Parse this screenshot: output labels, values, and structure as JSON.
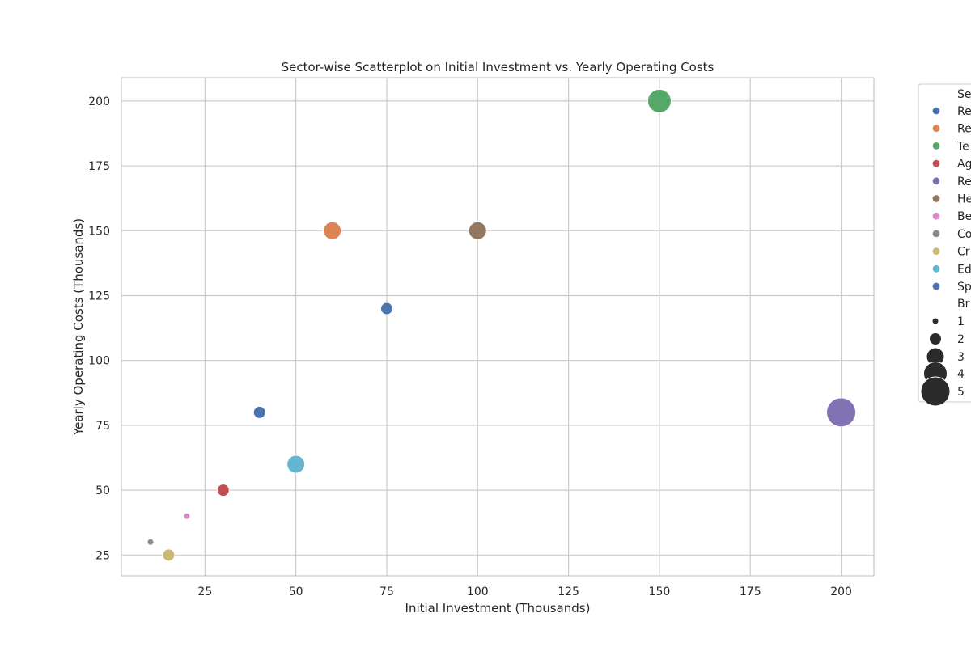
{
  "chart_data": {
    "type": "scatter",
    "title": "Sector-wise Scatterplot on Initial Investment vs. Yearly Operating Costs",
    "xlabel": "Initial Investment (Thousands)",
    "ylabel": "Yearly Operating Costs (Thousands)",
    "xlim": [
      2,
      209
    ],
    "ylim": [
      17,
      209
    ],
    "xticks": [
      25,
      50,
      75,
      100,
      125,
      150,
      175,
      200
    ],
    "yticks": [
      25,
      50,
      75,
      100,
      125,
      150,
      175,
      200
    ],
    "grid": true,
    "legend_position": "outside-right",
    "points": [
      {
        "legend_label": "Re",
        "x": 40,
        "y": 80,
        "size": 2,
        "color": "#4c72b0"
      },
      {
        "legend_label": "Re",
        "x": 60,
        "y": 150,
        "size": 3,
        "color": "#dd8452"
      },
      {
        "legend_label": "Te",
        "x": 150,
        "y": 200,
        "size": 4,
        "color": "#55a868"
      },
      {
        "legend_label": "Ag",
        "x": 30,
        "y": 50,
        "size": 2,
        "color": "#c44e52"
      },
      {
        "legend_label": "Re",
        "x": 200,
        "y": 80,
        "size": 5,
        "color": "#8172b3"
      },
      {
        "legend_label": "He",
        "x": 100,
        "y": 150,
        "size": 3,
        "color": "#937860"
      },
      {
        "legend_label": "Be",
        "x": 20,
        "y": 40,
        "size": 1,
        "color": "#da8bc3"
      },
      {
        "legend_label": "Co",
        "x": 10,
        "y": 30,
        "size": 1,
        "color": "#8c8c8c"
      },
      {
        "legend_label": "Cr",
        "x": 15,
        "y": 25,
        "size": 2,
        "color": "#ccb974"
      },
      {
        "legend_label": "Ed",
        "x": 50,
        "y": 60,
        "size": 3,
        "color": "#64b5cd"
      },
      {
        "legend_label": "Sp",
        "x": 75,
        "y": 120,
        "size": 2,
        "color": "#4c72b0"
      }
    ],
    "legend": {
      "hue_title": "Se",
      "size_title": "Br",
      "size_values": [
        1,
        2,
        3,
        4,
        5
      ],
      "size_color": "#2b2b2b"
    },
    "colors": {
      "grid": "#cccccc",
      "spine": "#cccccc",
      "text": "#262626"
    }
  }
}
